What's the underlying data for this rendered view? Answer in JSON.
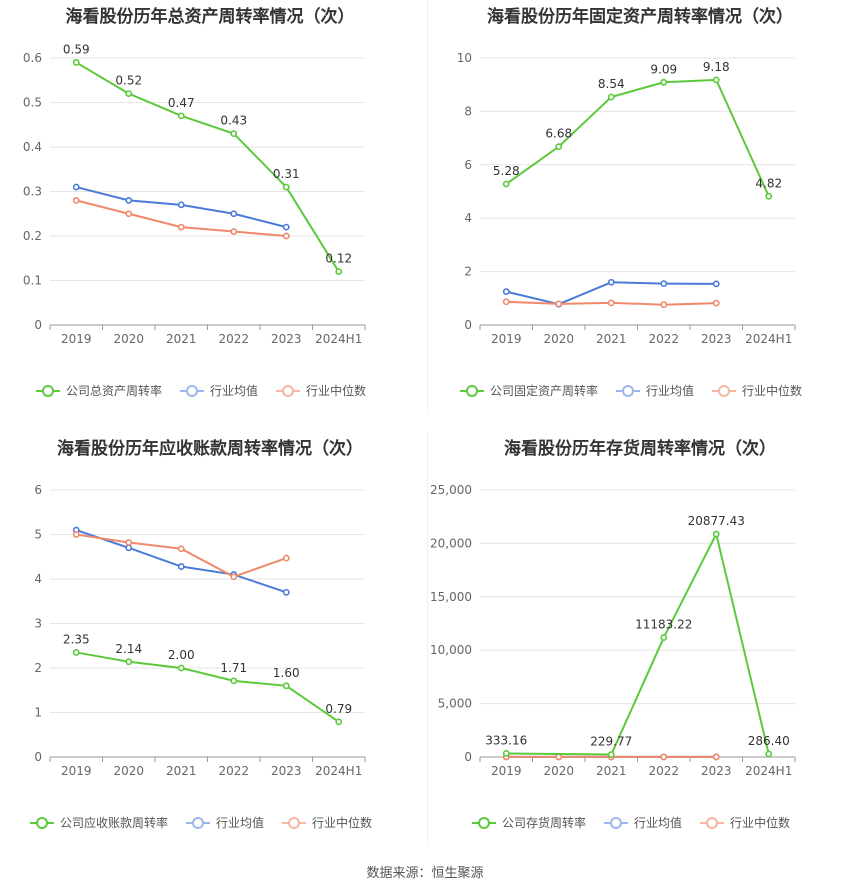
{
  "colors": {
    "company": "#5cc93d",
    "industry_avg": "#4a7bd8",
    "industry_median": "#f0896b",
    "legend_avg": "#9db7ec",
    "legend_median": "#f5b8a3"
  },
  "legend": {
    "avg": "行业均值",
    "median": "行业中位数"
  },
  "footer": {
    "text": "数据来源：恒生聚源"
  },
  "chart_data": [
    {
      "type": "line",
      "title": "海看股份历年总资产周转率情况（次）",
      "categories": [
        "2019",
        "2020",
        "2021",
        "2022",
        "2023",
        "2024H1"
      ],
      "ylim": [
        0,
        0.6
      ],
      "yticks": [
        "0",
        "0.1",
        "0.2",
        "0.3",
        "0.4",
        "0.5",
        "0.6"
      ],
      "ytick_values": [
        0,
        0.1,
        0.2,
        0.3,
        0.4,
        0.5,
        0.6
      ],
      "label_position": "above",
      "series": [
        {
          "name": "公司总资产周转率",
          "role": "company",
          "values": [
            0.59,
            0.52,
            0.47,
            0.43,
            0.31,
            0.12
          ],
          "labels": [
            "0.59",
            "0.52",
            "0.47",
            "0.43",
            "0.31",
            "0.12"
          ]
        },
        {
          "name": "行业均值",
          "role": "avg",
          "values": [
            0.31,
            0.28,
            0.27,
            0.25,
            0.22,
            null
          ]
        },
        {
          "name": "行业中位数",
          "role": "median",
          "values": [
            0.28,
            0.25,
            0.22,
            0.21,
            0.2,
            null
          ]
        }
      ]
    },
    {
      "type": "line",
      "title": "海看股份历年固定资产周转率情况（次）",
      "categories": [
        "2019",
        "2020",
        "2021",
        "2022",
        "2023",
        "2024H1"
      ],
      "ylim": [
        0,
        10
      ],
      "yticks": [
        "0",
        "2",
        "4",
        "6",
        "8",
        "10"
      ],
      "ytick_values": [
        0,
        2,
        4,
        6,
        8,
        10
      ],
      "label_position": "above",
      "series": [
        {
          "name": "公司固定资产周转率",
          "role": "company",
          "values": [
            5.28,
            6.68,
            8.54,
            9.09,
            9.18,
            4.82
          ],
          "labels": [
            "5.28",
            "6.68",
            "8.54",
            "9.09",
            "9.18",
            "4.82"
          ]
        },
        {
          "name": "行业均值",
          "role": "avg",
          "values": [
            1.25,
            0.78,
            1.6,
            1.55,
            1.54,
            null
          ]
        },
        {
          "name": "行业中位数",
          "role": "median",
          "values": [
            0.87,
            0.79,
            0.83,
            0.76,
            0.82,
            null
          ]
        }
      ]
    },
    {
      "type": "line",
      "title": "海看股份历年应收账款周转率情况（次）",
      "categories": [
        "2019",
        "2020",
        "2021",
        "2022",
        "2023",
        "2024H1"
      ],
      "ylim": [
        0,
        6
      ],
      "yticks": [
        "0",
        "1",
        "2",
        "3",
        "4",
        "5",
        "6"
      ],
      "ytick_values": [
        0,
        1,
        2,
        3,
        4,
        5,
        6
      ],
      "label_position": "above",
      "series": [
        {
          "name": "公司应收账款周转率",
          "role": "company",
          "values": [
            2.35,
            2.14,
            2.0,
            1.71,
            1.6,
            0.79
          ],
          "labels": [
            "2.35",
            "2.14",
            "2.00",
            "1.71",
            "1.60",
            "0.79"
          ]
        },
        {
          "name": "行业均值",
          "role": "avg",
          "values": [
            5.1,
            4.7,
            4.28,
            4.1,
            3.7,
            null
          ]
        },
        {
          "name": "行业中位数",
          "role": "median",
          "values": [
            5.0,
            4.82,
            4.68,
            4.05,
            4.47,
            null
          ]
        }
      ]
    },
    {
      "type": "line",
      "title": "海看股份历年存货周转率情况（次）",
      "categories": [
        "2019",
        "2020",
        "2021",
        "2022",
        "2023",
        "2024H1"
      ],
      "ylim": [
        0,
        25000
      ],
      "yticks": [
        "0",
        "5,000",
        "10,000",
        "15,000",
        "20,000",
        "25,000"
      ],
      "ytick_values": [
        0,
        5000,
        10000,
        15000,
        20000,
        25000
      ],
      "label_position": "above",
      "series": [
        {
          "name": "公司存货周转率",
          "role": "company",
          "values": [
            333.16,
            null,
            229.77,
            11183.22,
            20877.43,
            286.4
          ],
          "labels": [
            "333.16",
            "",
            "229.77",
            "11183.22",
            "20877.43",
            "286.40"
          ]
        },
        {
          "name": "行业均值",
          "role": "avg",
          "values": [
            10,
            10,
            10,
            10,
            10,
            null
          ]
        },
        {
          "name": "行业中位数",
          "role": "median",
          "values": [
            8,
            8,
            8,
            8,
            8,
            null
          ]
        }
      ]
    }
  ]
}
